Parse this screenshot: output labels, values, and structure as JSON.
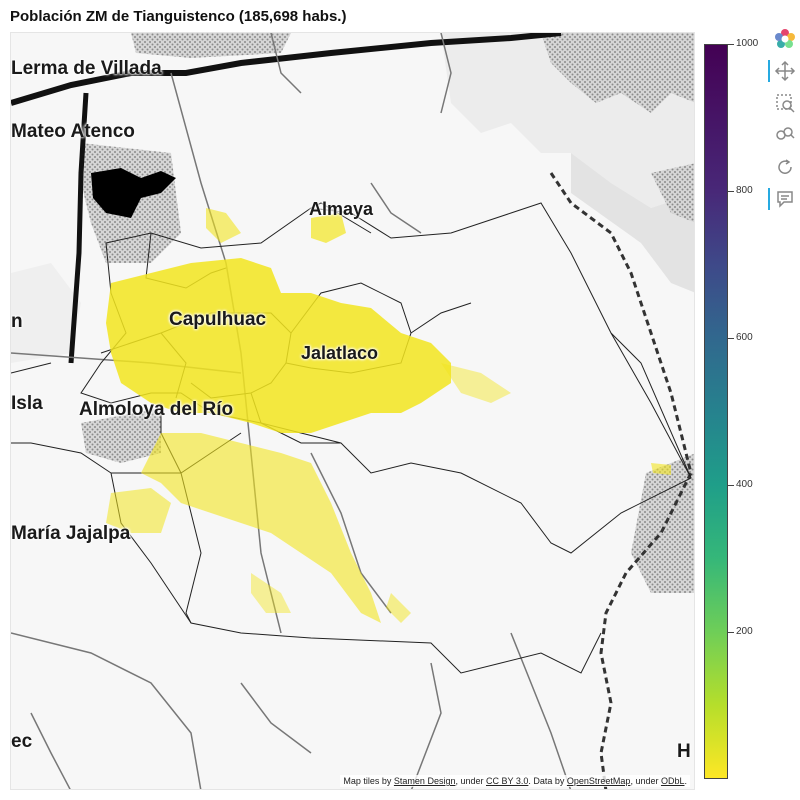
{
  "title": "Población ZM de Tianguistenco (185,698 habs.)",
  "map": {
    "places": [
      {
        "name": "Lerma de Villada",
        "key": "lerma"
      },
      {
        "name": "Mateo Atenco",
        "key": "atenco"
      },
      {
        "name": "Almaya",
        "key": "almaya"
      },
      {
        "name": "Capulhuac",
        "key": "capulhuac"
      },
      {
        "name": "Jalatlaco",
        "key": "jalatlaco"
      },
      {
        "name": "Isla",
        "key": "isla"
      },
      {
        "name": "Almoloya del Río",
        "key": "almoloya"
      },
      {
        "name": "María Jajalpa",
        "key": "jajalpa"
      },
      {
        "name": "n",
        "key": "n"
      },
      {
        "name": "ec",
        "key": "ec"
      },
      {
        "name": "H",
        "key": "h"
      }
    ],
    "attribution": {
      "prefix": "Map tiles by ",
      "stamen": "Stamen Design",
      "under1": ", under ",
      "ccby": "CC BY 3.0",
      "data": ". Data by ",
      "osm": "OpenStreetMap",
      "under2": ", under ",
      "odbl": "ODbL",
      "end": "."
    },
    "population_color": "#f2e51f"
  },
  "colorbar": {
    "min": 0,
    "max": 1000,
    "ticks": [
      {
        "label": "1000",
        "value": 1000
      },
      {
        "label": "800",
        "value": 800
      },
      {
        "label": "600",
        "value": 600
      },
      {
        "label": "400",
        "value": 400
      },
      {
        "label": "200",
        "value": 200
      }
    ],
    "palette": "viridis"
  },
  "toolbar": {
    "tools": [
      {
        "name": "bokeh-logo-icon"
      },
      {
        "name": "pan-tool-icon",
        "active": true
      },
      {
        "name": "box-zoom-tool-icon"
      },
      {
        "name": "wheel-zoom-tool-icon"
      },
      {
        "name": "reset-tool-icon"
      },
      {
        "name": "hover-tool-icon",
        "active": true
      }
    ]
  }
}
